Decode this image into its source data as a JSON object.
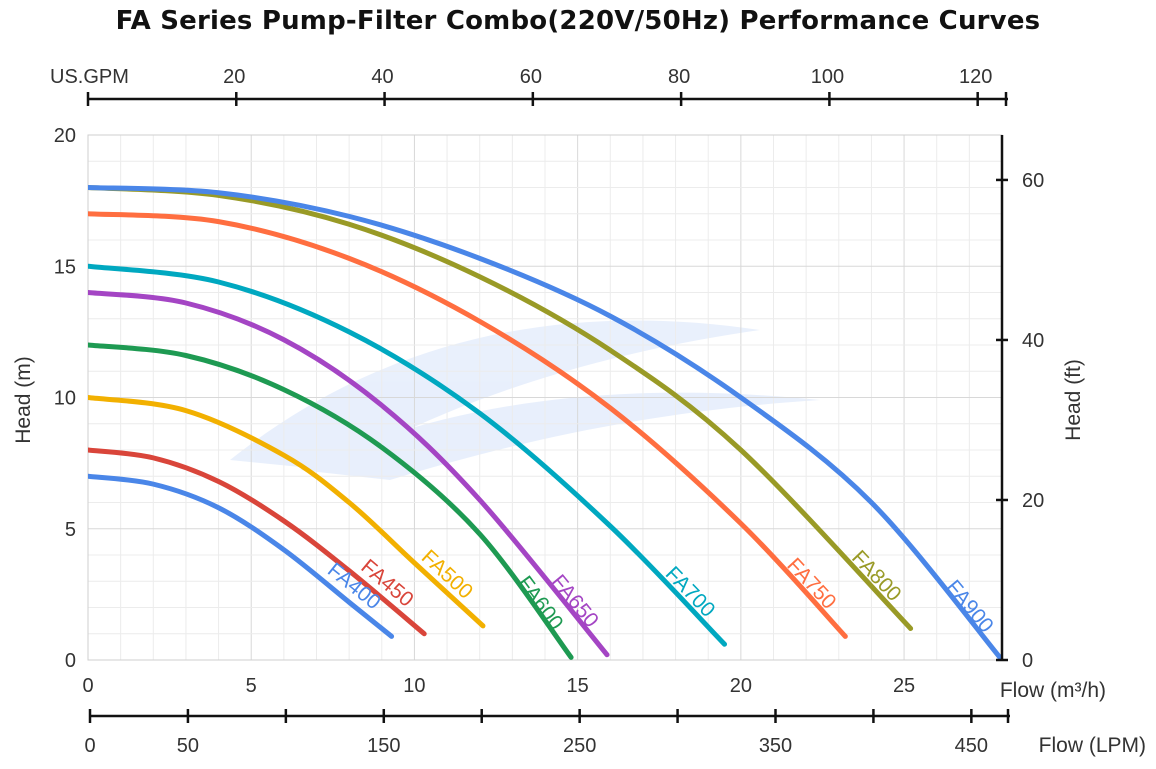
{
  "title": "FA Series Pump-Filter Combo(220V/50Hz) Performance Curves",
  "colors": {
    "FA400": "#4a86e8",
    "FA450": "#d9453a",
    "FA500": "#f2b000",
    "FA600": "#1e9a52",
    "FA650": "#a445c4",
    "FA700": "#00a8c0",
    "FA750": "#ff6e40",
    "FA800": "#999a26",
    "FA900": "#4a86e8"
  },
  "chart_data": {
    "type": "line",
    "title": "FA Series Pump-Filter Combo(220V/50Hz) Performance Curves",
    "xlabel": "Flow (m³/h)",
    "ylabel": "Head (m)",
    "y2label": "Head (ft)",
    "xlim": [
      0,
      28
    ],
    "ylim": [
      0,
      20
    ],
    "grid": true,
    "x_ticks": [
      0,
      5,
      10,
      15,
      20,
      25
    ],
    "y_ticks": [
      0,
      5,
      10,
      15,
      20
    ],
    "y2_ticks": [
      0,
      20,
      40,
      60
    ],
    "gpm_axis": {
      "label": "US.GPM",
      "ticks": [
        20,
        40,
        60,
        80,
        100,
        120
      ]
    },
    "lpm_axis": {
      "label": "Flow (LPM)",
      "ticks": [
        0,
        50,
        150,
        250,
        350,
        450
      ]
    },
    "series": [
      {
        "name": "FA400",
        "x": [
          0,
          2,
          4,
          6,
          8,
          9.3
        ],
        "y": [
          7,
          6.7,
          5.8,
          4.2,
          2.2,
          0.9
        ]
      },
      {
        "name": "FA450",
        "x": [
          0,
          2,
          4,
          6,
          8,
          10.3
        ],
        "y": [
          8,
          7.7,
          6.8,
          5.3,
          3.4,
          1.0
        ]
      },
      {
        "name": "FA500",
        "x": [
          0,
          3,
          6,
          8,
          10,
          12.1
        ],
        "y": [
          10,
          9.5,
          7.8,
          6.0,
          3.7,
          1.3
        ]
      },
      {
        "name": "FA600",
        "x": [
          0,
          3,
          6,
          9,
          12,
          14.8
        ],
        "y": [
          12,
          11.6,
          10.3,
          8.1,
          4.8,
          0.1
        ]
      },
      {
        "name": "FA650",
        "x": [
          0,
          3,
          6,
          9,
          12,
          15.9
        ],
        "y": [
          14,
          13.6,
          12.2,
          9.7,
          6.1,
          0.2
        ]
      },
      {
        "name": "FA700",
        "x": [
          0,
          4,
          8,
          12,
          16,
          19.5
        ],
        "y": [
          15,
          14.4,
          12.5,
          9.4,
          5.1,
          0.6
        ]
      },
      {
        "name": "FA750",
        "x": [
          0,
          4,
          8,
          12,
          16,
          20,
          23.2
        ],
        "y": [
          17,
          16.7,
          15.3,
          12.9,
          9.6,
          5.2,
          0.9
        ]
      },
      {
        "name": "FA800",
        "x": [
          0,
          4,
          8,
          12,
          16,
          20,
          25.2
        ],
        "y": [
          18,
          17.7,
          16.6,
          14.6,
          11.8,
          8.0,
          1.2
        ]
      },
      {
        "name": "FA900",
        "x": [
          0,
          4,
          8,
          12,
          16,
          20,
          24,
          28
        ],
        "y": [
          18,
          17.8,
          16.9,
          15.3,
          13.1,
          10.0,
          6.0,
          0.0
        ]
      }
    ]
  }
}
